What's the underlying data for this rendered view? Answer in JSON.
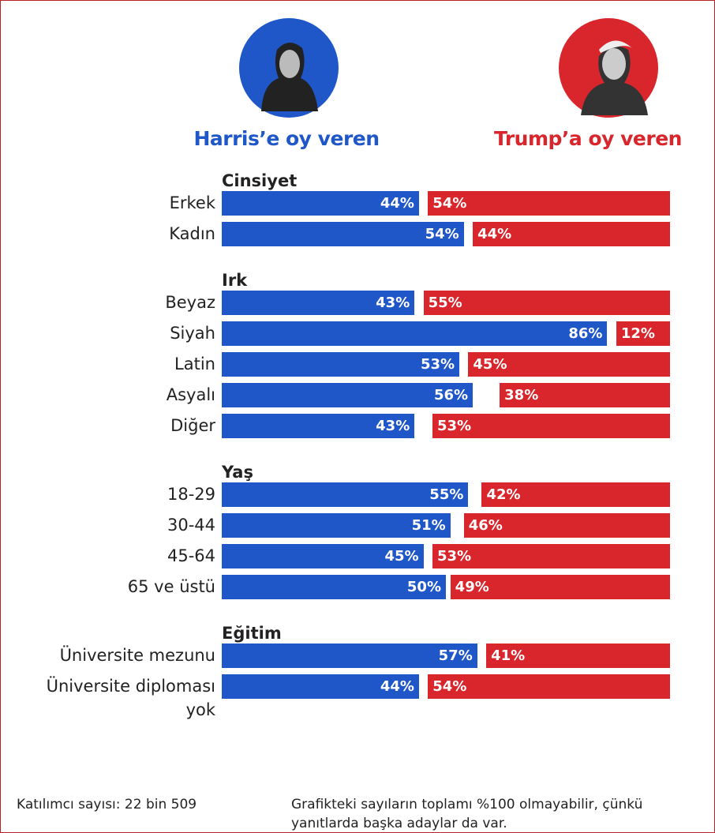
{
  "chart_data": {
    "type": "bar",
    "xlim": [
      0,
      100
    ],
    "series": [
      {
        "name": "Harris’e oy veren",
        "color": "#1f56c8"
      },
      {
        "name": "Trump’a oy veren",
        "color": "#d9262c"
      }
    ],
    "groups": [
      {
        "title": "Cinsiyet",
        "categories": [
          "Erkek",
          "Kadın"
        ],
        "series": [
          {
            "values": [
              44,
              54
            ],
            "value_labels": [
              "44%",
              "54%"
            ]
          },
          {
            "values": [
              54,
              44
            ],
            "value_labels": [
              "54%",
              "44%"
            ]
          }
        ]
      },
      {
        "title": "Irk",
        "categories": [
          "Beyaz",
          "Siyah",
          "Latin",
          "Asyalı",
          "Diğer"
        ],
        "series": [
          {
            "values": [
              43,
              86,
              53,
              56,
              43
            ],
            "value_labels": [
              "43%",
              "86%",
              "53%",
              "56%",
              "43%"
            ]
          },
          {
            "values": [
              55,
              12,
              45,
              38,
              53
            ],
            "value_labels": [
              "55%",
              "12%",
              "45%",
              "38%",
              "53%"
            ]
          }
        ]
      },
      {
        "title": "Yaş",
        "categories": [
          "18-29",
          "30-44",
          "45-64",
          "65 ve üstü"
        ],
        "series": [
          {
            "values": [
              55,
              51,
              45,
              50
            ],
            "value_labels": [
              "55%",
              "51%",
              "45%",
              "50%"
            ]
          },
          {
            "values": [
              42,
              46,
              53,
              49
            ],
            "value_labels": [
              "42%",
              "46%",
              "53%",
              "49%"
            ]
          }
        ]
      },
      {
        "title": "Eğitim",
        "categories": [
          "Üniversite mezunu",
          "Üniversite diploması yok"
        ],
        "series": [
          {
            "values": [
              57,
              44
            ],
            "value_labels": [
              "57%",
              "44%"
            ]
          },
          {
            "values": [
              41,
              54
            ],
            "value_labels": [
              "41%",
              "54%"
            ]
          }
        ]
      }
    ],
    "source": "Katılımcı sayısı: 22 bin 509",
    "note": "Grafikteki sayıların toplamı %100 olmayabilir, çünkü yanıtlarda başka adaylar da var."
  }
}
